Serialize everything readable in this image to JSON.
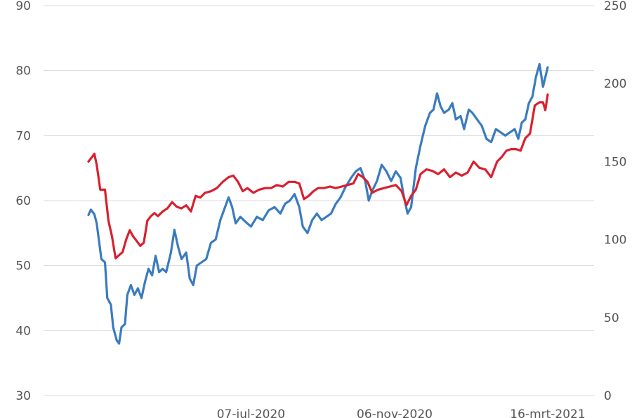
{
  "chart_data": {
    "type": "line",
    "title": "",
    "xlabel": "",
    "ylabel_left": "",
    "ylabel_right": "",
    "left_axis": {
      "min": 30,
      "max": 90,
      "ticks": [
        30,
        40,
        50,
        60,
        70,
        80,
        90
      ]
    },
    "right_axis": {
      "min": 0,
      "max": 250,
      "ticks": [
        0,
        50,
        100,
        150,
        200,
        250
      ]
    },
    "x_axis": {
      "start": "2020-02-20",
      "end": "2021-03-16",
      "ticks": [
        {
          "date": "2020-07-07",
          "label": "07-jul-2020"
        },
        {
          "date": "2020-11-06",
          "label": "06-nov-2020"
        },
        {
          "date": "2021-03-16",
          "label": "16-mrt-2021"
        }
      ]
    },
    "grid": "horizontal",
    "legend": "none",
    "series": [
      {
        "axis": "left",
        "color": "#3a7bbf",
        "points": [
          [
            "2020-02-20",
            57.8
          ],
          [
            "2020-02-22",
            58.6
          ],
          [
            "2020-02-25",
            57.9
          ],
          [
            "2020-02-27",
            56.5
          ],
          [
            "2020-03-02",
            51.0
          ],
          [
            "2020-03-05",
            50.5
          ],
          [
            "2020-03-07",
            45.0
          ],
          [
            "2020-03-10",
            44.0
          ],
          [
            "2020-03-12",
            40.5
          ],
          [
            "2020-03-15",
            38.5
          ],
          [
            "2020-03-17",
            38.0
          ],
          [
            "2020-03-19",
            40.5
          ],
          [
            "2020-03-22",
            41.0
          ],
          [
            "2020-03-24",
            45.5
          ],
          [
            "2020-03-27",
            47.0
          ],
          [
            "2020-03-30",
            45.5
          ],
          [
            "2020-04-02",
            46.5
          ],
          [
            "2020-04-05",
            45.0
          ],
          [
            "2020-04-08",
            47.5
          ],
          [
            "2020-04-11",
            49.5
          ],
          [
            "2020-04-14",
            48.5
          ],
          [
            "2020-04-17",
            51.5
          ],
          [
            "2020-04-20",
            49.0
          ],
          [
            "2020-04-23",
            49.5
          ],
          [
            "2020-04-26",
            49.0
          ],
          [
            "2020-04-30",
            52.0
          ],
          [
            "2020-05-03",
            55.5
          ],
          [
            "2020-05-06",
            53.0
          ],
          [
            "2020-05-09",
            51.0
          ],
          [
            "2020-05-13",
            52.0
          ],
          [
            "2020-05-16",
            48.0
          ],
          [
            "2020-05-19",
            47.0
          ],
          [
            "2020-05-22",
            50.0
          ],
          [
            "2020-05-26",
            50.5
          ],
          [
            "2020-05-30",
            51.0
          ],
          [
            "2020-06-03",
            53.5
          ],
          [
            "2020-06-07",
            54.0
          ],
          [
            "2020-06-11",
            57.0
          ],
          [
            "2020-06-15",
            59.0
          ],
          [
            "2020-06-18",
            60.5
          ],
          [
            "2020-06-21",
            59.0
          ],
          [
            "2020-06-24",
            56.5
          ],
          [
            "2020-06-28",
            57.5
          ],
          [
            "2020-07-02",
            56.8
          ],
          [
            "2020-07-07",
            56.0
          ],
          [
            "2020-07-12",
            57.5
          ],
          [
            "2020-07-17",
            57.0
          ],
          [
            "2020-07-22",
            58.5
          ],
          [
            "2020-07-27",
            59.0
          ],
          [
            "2020-08-01",
            58.0
          ],
          [
            "2020-08-05",
            59.5
          ],
          [
            "2020-08-09",
            60.0
          ],
          [
            "2020-08-13",
            61.0
          ],
          [
            "2020-08-17",
            59.0
          ],
          [
            "2020-08-20",
            56.0
          ],
          [
            "2020-08-24",
            55.0
          ],
          [
            "2020-08-28",
            57.0
          ],
          [
            "2020-09-01",
            58.0
          ],
          [
            "2020-09-05",
            57.0
          ],
          [
            "2020-09-09",
            57.5
          ],
          [
            "2020-09-13",
            58.0
          ],
          [
            "2020-09-17",
            59.5
          ],
          [
            "2020-09-21",
            60.5
          ],
          [
            "2020-09-25",
            62.0
          ],
          [
            "2020-09-30",
            63.5
          ],
          [
            "2020-10-04",
            64.5
          ],
          [
            "2020-10-08",
            65.0
          ],
          [
            "2020-10-12",
            63.0
          ],
          [
            "2020-10-15",
            60.0
          ],
          [
            "2020-10-18",
            61.5
          ],
          [
            "2020-10-22",
            63.0
          ],
          [
            "2020-10-26",
            65.5
          ],
          [
            "2020-10-30",
            64.5
          ],
          [
            "2020-11-03",
            63.0
          ],
          [
            "2020-11-07",
            64.5
          ],
          [
            "2020-11-11",
            63.5
          ],
          [
            "2020-11-14",
            60.5
          ],
          [
            "2020-11-17",
            58.0
          ],
          [
            "2020-11-20",
            59.0
          ],
          [
            "2020-11-24",
            65.0
          ],
          [
            "2020-11-28",
            68.5
          ],
          [
            "2020-12-02",
            71.5
          ],
          [
            "2020-12-06",
            73.5
          ],
          [
            "2020-12-09",
            74.0
          ],
          [
            "2020-12-12",
            76.5
          ],
          [
            "2020-12-15",
            74.5
          ],
          [
            "2020-12-18",
            73.5
          ],
          [
            "2020-12-22",
            74.0
          ],
          [
            "2020-12-25",
            75.0
          ],
          [
            "2020-12-28",
            72.5
          ],
          [
            "2021-01-01",
            73.0
          ],
          [
            "2021-01-04",
            71.0
          ],
          [
            "2021-01-08",
            74.0
          ],
          [
            "2021-01-11",
            73.5
          ],
          [
            "2021-01-15",
            72.5
          ],
          [
            "2021-01-19",
            71.5
          ],
          [
            "2021-01-23",
            69.5
          ],
          [
            "2021-01-27",
            69.0
          ],
          [
            "2021-01-31",
            71.0
          ],
          [
            "2021-02-04",
            70.5
          ],
          [
            "2021-02-08",
            70.0
          ],
          [
            "2021-02-12",
            70.5
          ],
          [
            "2021-02-16",
            71.0
          ],
          [
            "2021-02-19",
            69.5
          ],
          [
            "2021-02-22",
            72.0
          ],
          [
            "2021-02-25",
            72.5
          ],
          [
            "2021-02-28",
            75.0
          ],
          [
            "2021-03-03",
            76.0
          ],
          [
            "2021-03-06",
            79.0
          ],
          [
            "2021-03-09",
            81.0
          ],
          [
            "2021-03-12",
            77.5
          ],
          [
            "2021-03-16",
            80.5
          ]
        ]
      },
      {
        "axis": "right",
        "color": "#d9202e",
        "points": [
          [
            "2020-02-20",
            150
          ],
          [
            "2020-02-22",
            152
          ],
          [
            "2020-02-25",
            155
          ],
          [
            "2020-02-27",
            148
          ],
          [
            "2020-03-01",
            132
          ],
          [
            "2020-03-05",
            132
          ],
          [
            "2020-03-08",
            112
          ],
          [
            "2020-03-11",
            102
          ],
          [
            "2020-03-14",
            88
          ],
          [
            "2020-03-17",
            90
          ],
          [
            "2020-03-20",
            92
          ],
          [
            "2020-03-23",
            100
          ],
          [
            "2020-03-26",
            106
          ],
          [
            "2020-03-29",
            102
          ],
          [
            "2020-04-01",
            99
          ],
          [
            "2020-04-04",
            96
          ],
          [
            "2020-04-07",
            98
          ],
          [
            "2020-04-10",
            112
          ],
          [
            "2020-04-13",
            115
          ],
          [
            "2020-04-16",
            117
          ],
          [
            "2020-04-19",
            115
          ],
          [
            "2020-04-23",
            118
          ],
          [
            "2020-04-27",
            120
          ],
          [
            "2020-05-01",
            124
          ],
          [
            "2020-05-05",
            121
          ],
          [
            "2020-05-09",
            120
          ],
          [
            "2020-05-13",
            122
          ],
          [
            "2020-05-17",
            118
          ],
          [
            "2020-05-21",
            128
          ],
          [
            "2020-05-25",
            127
          ],
          [
            "2020-05-29",
            130
          ],
          [
            "2020-06-03",
            131
          ],
          [
            "2020-06-08",
            133
          ],
          [
            "2020-06-13",
            137
          ],
          [
            "2020-06-18",
            140
          ],
          [
            "2020-06-22",
            141
          ],
          [
            "2020-06-26",
            137
          ],
          [
            "2020-06-30",
            131
          ],
          [
            "2020-07-04",
            133
          ],
          [
            "2020-07-09",
            130
          ],
          [
            "2020-07-14",
            132
          ],
          [
            "2020-07-19",
            133
          ],
          [
            "2020-07-24",
            133
          ],
          [
            "2020-07-29",
            135
          ],
          [
            "2020-08-03",
            134
          ],
          [
            "2020-08-08",
            137
          ],
          [
            "2020-08-13",
            137
          ],
          [
            "2020-08-17",
            136
          ],
          [
            "2020-08-21",
            126
          ],
          [
            "2020-08-25",
            128
          ],
          [
            "2020-08-29",
            131
          ],
          [
            "2020-09-02",
            133
          ],
          [
            "2020-09-07",
            133
          ],
          [
            "2020-09-12",
            134
          ],
          [
            "2020-09-17",
            133
          ],
          [
            "2020-09-22",
            134
          ],
          [
            "2020-09-27",
            135
          ],
          [
            "2020-10-02",
            136
          ],
          [
            "2020-10-06",
            142
          ],
          [
            "2020-10-10",
            140
          ],
          [
            "2020-10-14",
            137
          ],
          [
            "2020-10-18",
            130
          ],
          [
            "2020-10-23",
            132
          ],
          [
            "2020-10-28",
            133
          ],
          [
            "2020-11-02",
            134
          ],
          [
            "2020-11-07",
            135
          ],
          [
            "2020-11-12",
            131
          ],
          [
            "2020-11-16",
            122
          ],
          [
            "2020-11-20",
            128
          ],
          [
            "2020-11-24",
            132
          ],
          [
            "2020-11-28",
            142
          ],
          [
            "2020-12-03",
            145
          ],
          [
            "2020-12-08",
            144
          ],
          [
            "2020-12-13",
            142
          ],
          [
            "2020-12-18",
            145
          ],
          [
            "2020-12-23",
            140
          ],
          [
            "2020-12-28",
            143
          ],
          [
            "2021-01-02",
            141
          ],
          [
            "2021-01-07",
            143
          ],
          [
            "2021-01-12",
            150
          ],
          [
            "2021-01-17",
            146
          ],
          [
            "2021-01-22",
            145
          ],
          [
            "2021-01-27",
            140
          ],
          [
            "2021-02-01",
            150
          ],
          [
            "2021-02-05",
            153
          ],
          [
            "2021-02-09",
            157
          ],
          [
            "2021-02-13",
            158
          ],
          [
            "2021-02-17",
            158
          ],
          [
            "2021-02-21",
            157
          ],
          [
            "2021-02-25",
            165
          ],
          [
            "2021-03-01",
            168
          ],
          [
            "2021-03-05",
            186
          ],
          [
            "2021-03-09",
            188
          ],
          [
            "2021-03-12",
            188
          ],
          [
            "2021-03-14",
            183
          ],
          [
            "2021-03-16",
            193
          ]
        ]
      }
    ]
  }
}
